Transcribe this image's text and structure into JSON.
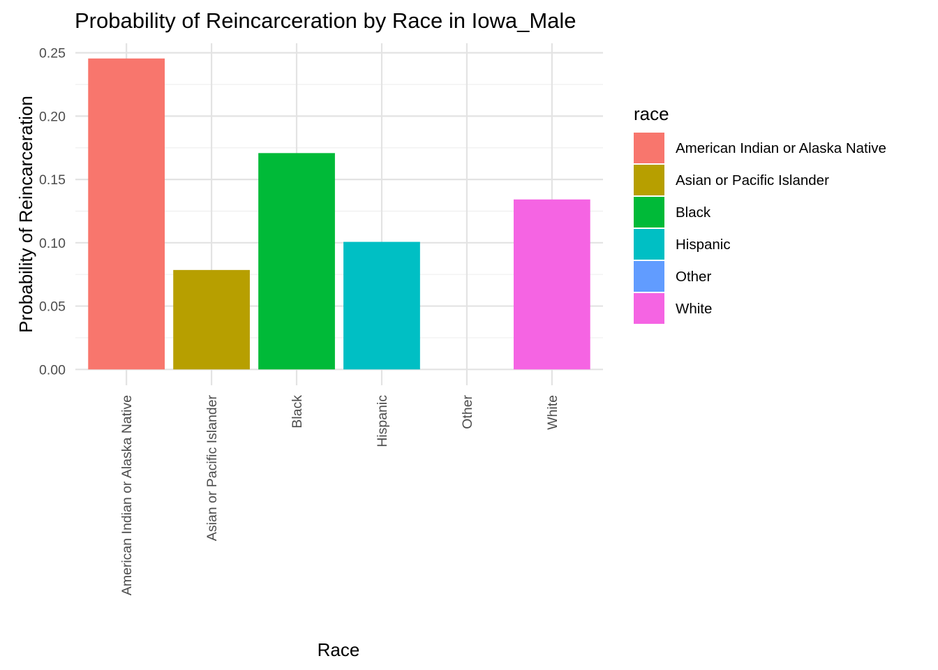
{
  "chart_data": {
    "type": "bar",
    "title": "Probability of Reincarceration by Race in Iowa_Male",
    "xlabel": "Race",
    "ylabel": "Probability of Reincarceration",
    "categories": [
      "American Indian or Alaska Native",
      "Asian or Pacific Islander",
      "Black",
      "Hispanic",
      "Other",
      "White"
    ],
    "values": [
      0.2455,
      0.0785,
      0.1708,
      0.1007,
      0.0,
      0.1342
    ],
    "colors": [
      "#F8766D",
      "#B79F00",
      "#00BA38",
      "#00BFC4",
      "#619CFF",
      "#F564E3"
    ],
    "ylim": [
      -0.0125,
      0.2575
    ],
    "yticks": [
      0.0,
      0.05,
      0.1,
      0.15,
      0.2,
      0.25
    ],
    "ytick_labels": [
      "0.00",
      "0.05",
      "0.10",
      "0.15",
      "0.20",
      "0.25"
    ],
    "grid": true,
    "legend": {
      "title": "race",
      "position": "right",
      "items": [
        "American Indian or Alaska Native",
        "Asian or Pacific Islander",
        "Black",
        "Hispanic",
        "Other",
        "White"
      ]
    }
  }
}
